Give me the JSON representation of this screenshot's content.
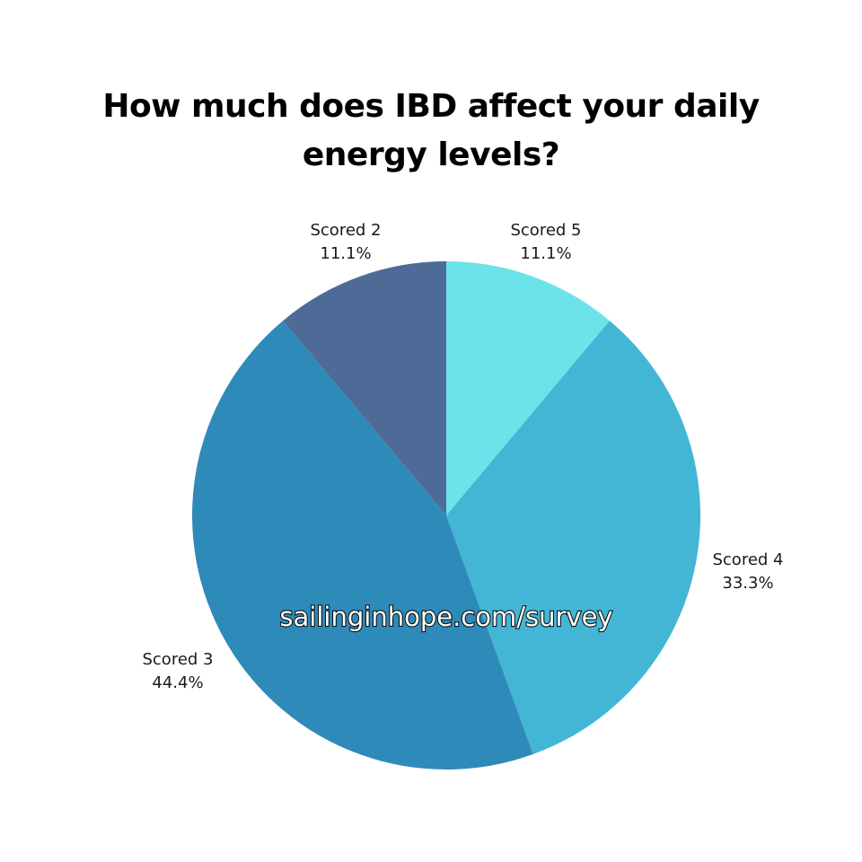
{
  "chart_data": {
    "type": "pie",
    "title": "How much does IBD affect your daily energy levels?",
    "slices": [
      {
        "name": "Scored 5",
        "value": 11.1,
        "label": "11.1%",
        "color": "#6CE3E8"
      },
      {
        "name": "Scored 4",
        "value": 33.3,
        "label": "33.3%",
        "color": "#43B6D5"
      },
      {
        "name": "Scored 3",
        "value": 44.4,
        "label": "44.4%",
        "color": "#2E8AB8"
      },
      {
        "name": "Scored 2",
        "value": 11.1,
        "label": "11.1%",
        "color": "#4D6B96"
      }
    ],
    "start_angle": "top",
    "direction": "clockwise",
    "label_placement": "outside"
  },
  "watermark": "sailinginhope.com/survey"
}
